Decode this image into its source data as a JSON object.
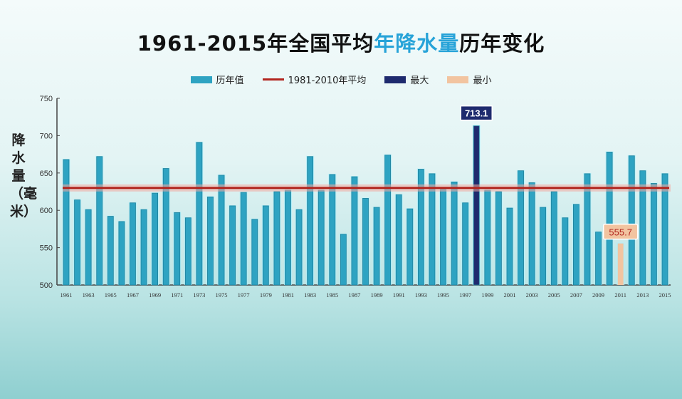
{
  "title_parts": [
    "1961-2015年全国平均",
    "年降水量",
    "历年变化"
  ],
  "legend": {
    "values": "历年值",
    "average": "1981-2010年平均",
    "max": "最大",
    "min": "最小"
  },
  "colors": {
    "bar": "#2ea3c2",
    "average": "#b2261f",
    "max": "#1e2a6e",
    "min": "#f2c4a0",
    "highlight": "#27a3d8"
  },
  "chart_data": {
    "type": "bar",
    "ylabel": "降水量（毫米）",
    "ylim": [
      500,
      750
    ],
    "yticks": [
      500,
      550,
      600,
      650,
      700,
      750
    ],
    "categories": [
      1961,
      1962,
      1963,
      1964,
      1965,
      1966,
      1967,
      1968,
      1969,
      1970,
      1971,
      1972,
      1973,
      1974,
      1975,
      1976,
      1977,
      1978,
      1979,
      1980,
      1981,
      1982,
      1983,
      1984,
      1985,
      1986,
      1987,
      1988,
      1989,
      1990,
      1991,
      1992,
      1993,
      1994,
      1995,
      1996,
      1997,
      1998,
      1999,
      2000,
      2001,
      2002,
      2003,
      2004,
      2005,
      2006,
      2007,
      2008,
      2009,
      2010,
      2011,
      2012,
      2013,
      2014,
      2015
    ],
    "values": [
      668,
      614,
      601,
      672,
      592,
      585,
      610,
      601,
      623,
      656,
      597,
      590,
      691,
      618,
      647,
      606,
      624,
      588,
      606,
      625,
      627,
      601,
      672,
      627,
      648,
      568,
      645,
      616,
      604,
      674,
      621,
      602,
      655,
      649,
      628,
      638,
      610,
      713.1,
      627,
      625,
      603,
      653,
      637,
      604,
      625,
      590,
      608,
      649,
      571,
      678,
      555.7,
      673,
      653,
      636,
      649
    ],
    "average": 630,
    "max": {
      "year": 1998,
      "label": "713.1"
    },
    "min": {
      "year": 2011,
      "label": "555.7"
    },
    "grid": false
  }
}
